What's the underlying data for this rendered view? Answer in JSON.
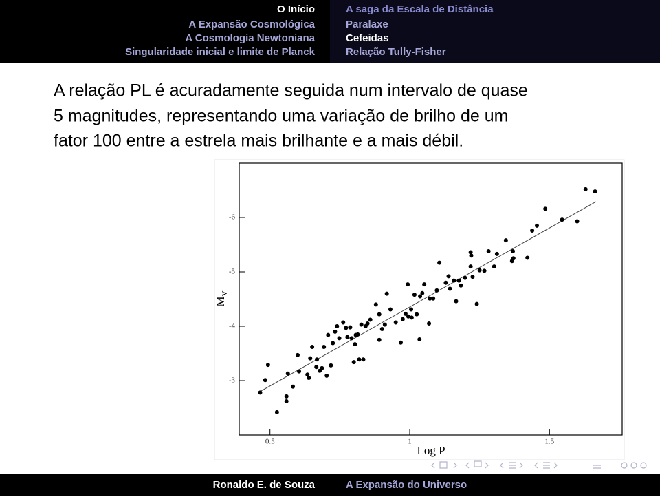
{
  "header": {
    "left": [
      "O Início",
      "A Expansão Cosmológica",
      "A Cosmologia Newtoniana",
      "Singularidade inicial e limite de Planck"
    ],
    "right": [
      "A saga da Escala de Distância",
      "Paralaxe",
      "Cefeidas",
      "Relação Tully-Fisher"
    ]
  },
  "body": {
    "text": [
      "A relação PL é acuradamente seguida num intervalo de quase",
      "5 magnitudes, representando uma variação de brilho de um",
      "fator 100 entre a estrela mais brilhante e a mais débil."
    ]
  },
  "chart_data": {
    "type": "scatter",
    "xlabel": "Log P",
    "ylabel": "M",
    "ylabel_sub": "V",
    "color": "#000000",
    "x": [
      0.465,
      0.483,
      0.493,
      0.525,
      0.559,
      0.559,
      0.564,
      0.582,
      0.599,
      0.604,
      0.634,
      0.639,
      0.644,
      0.651,
      0.666,
      0.668,
      0.678,
      0.686,
      0.693,
      0.703,
      0.708,
      0.718,
      0.725,
      0.733,
      0.74,
      0.748,
      0.762,
      0.772,
      0.777,
      0.787,
      0.792,
      0.8,
      0.804,
      0.807,
      0.814,
      0.819,
      0.827,
      0.834,
      0.842,
      0.849,
      0.859,
      0.879,
      0.891,
      0.891,
      0.901,
      0.911,
      0.918,
      0.931,
      0.95,
      0.968,
      0.975,
      0.985,
      0.993,
      0.995,
      1.005,
      1.007,
      1.017,
      1.025,
      1.035,
      1.037,
      1.045,
      1.052,
      1.069,
      1.072,
      1.084,
      1.097,
      1.106,
      1.129,
      1.139,
      1.144,
      1.158,
      1.166,
      1.176,
      1.183,
      1.198,
      1.218,
      1.218,
      1.22,
      1.225,
      1.24,
      1.25,
      1.267,
      1.282,
      1.302,
      1.312,
      1.344,
      1.366,
      1.369,
      1.371,
      1.421,
      1.438,
      1.455,
      1.485,
      1.545,
      1.599,
      1.629,
      1.663
    ],
    "values": [
      -2.78,
      -3.01,
      -3.29,
      -2.42,
      -2.71,
      -2.62,
      -3.13,
      -2.89,
      -3.47,
      -3.17,
      -3.11,
      -3.05,
      -3.41,
      -3.62,
      -3.25,
      -3.39,
      -3.18,
      -3.23,
      -3.62,
      -3.09,
      -3.84,
      -3.28,
      -3.69,
      -3.9,
      -4.0,
      -3.78,
      -4.07,
      -3.97,
      -3.8,
      -3.98,
      -3.78,
      -3.34,
      -3.67,
      -3.84,
      -3.85,
      -3.39,
      -4.03,
      -3.39,
      -4.0,
      -4.05,
      -4.12,
      -4.4,
      -4.22,
      -3.75,
      -3.95,
      -4.03,
      -4.6,
      -4.31,
      -4.07,
      -3.7,
      -4.13,
      -4.23,
      -4.77,
      -4.18,
      -4.31,
      -4.16,
      -4.58,
      -4.22,
      -3.76,
      -4.55,
      -4.61,
      -4.77,
      -4.05,
      -4.51,
      -4.51,
      -4.66,
      -5.17,
      -4.8,
      -4.92,
      -4.69,
      -4.84,
      -4.46,
      -4.84,
      -4.75,
      -4.89,
      -5.36,
      -5.1,
      -5.3,
      -4.91,
      -4.41,
      -5.03,
      -5.02,
      -5.38,
      -5.1,
      -5.33,
      -5.58,
      -5.2,
      -5.38,
      -5.25,
      -5.26,
      -5.76,
      -5.85,
      -6.16,
      -5.96,
      -5.93,
      -6.52,
      -6.48
    ],
    "fit_line": {
      "x": [
        0.465,
        1.666
      ],
      "y": [
        -2.8,
        -6.29
      ]
    },
    "xlim": [
      0.39,
      1.76
    ],
    "ylim": [
      -2,
      -7
    ],
    "xticks": [
      0.5,
      1,
      1.5
    ],
    "yticks": [
      -6,
      -5,
      -4,
      -3
    ]
  },
  "footer": {
    "author": "Ronaldo E. de Souza",
    "title": "A Expansão do Universo"
  }
}
